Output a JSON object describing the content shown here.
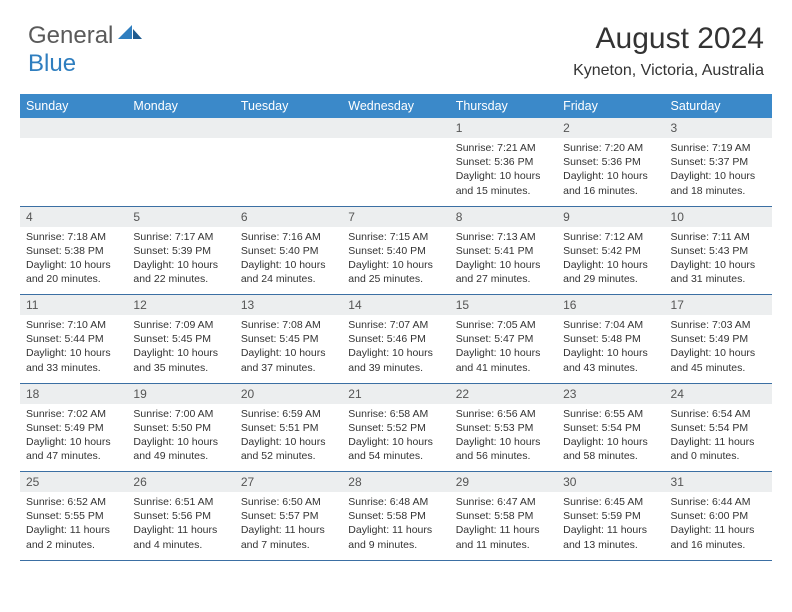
{
  "logo": {
    "word1": "General",
    "word2": "Blue"
  },
  "title": "August 2024",
  "location": "Kyneton, Victoria, Australia",
  "colors": {
    "header_bg": "#3b89c9",
    "header_text": "#ffffff",
    "daynum_bg": "#eceeef",
    "border": "#3b6fa3",
    "logo_gray": "#5a5a5a",
    "logo_blue": "#2f7ebf"
  },
  "day_labels": [
    "Sunday",
    "Monday",
    "Tuesday",
    "Wednesday",
    "Thursday",
    "Friday",
    "Saturday"
  ],
  "weeks": [
    {
      "nums": [
        "",
        "",
        "",
        "",
        "1",
        "2",
        "3"
      ],
      "cells": [
        null,
        null,
        null,
        null,
        {
          "sunrise": "Sunrise: 7:21 AM",
          "sunset": "Sunset: 5:36 PM",
          "daylight1": "Daylight: 10 hours",
          "daylight2": "and 15 minutes."
        },
        {
          "sunrise": "Sunrise: 7:20 AM",
          "sunset": "Sunset: 5:36 PM",
          "daylight1": "Daylight: 10 hours",
          "daylight2": "and 16 minutes."
        },
        {
          "sunrise": "Sunrise: 7:19 AM",
          "sunset": "Sunset: 5:37 PM",
          "daylight1": "Daylight: 10 hours",
          "daylight2": "and 18 minutes."
        }
      ]
    },
    {
      "nums": [
        "4",
        "5",
        "6",
        "7",
        "8",
        "9",
        "10"
      ],
      "cells": [
        {
          "sunrise": "Sunrise: 7:18 AM",
          "sunset": "Sunset: 5:38 PM",
          "daylight1": "Daylight: 10 hours",
          "daylight2": "and 20 minutes."
        },
        {
          "sunrise": "Sunrise: 7:17 AM",
          "sunset": "Sunset: 5:39 PM",
          "daylight1": "Daylight: 10 hours",
          "daylight2": "and 22 minutes."
        },
        {
          "sunrise": "Sunrise: 7:16 AM",
          "sunset": "Sunset: 5:40 PM",
          "daylight1": "Daylight: 10 hours",
          "daylight2": "and 24 minutes."
        },
        {
          "sunrise": "Sunrise: 7:15 AM",
          "sunset": "Sunset: 5:40 PM",
          "daylight1": "Daylight: 10 hours",
          "daylight2": "and 25 minutes."
        },
        {
          "sunrise": "Sunrise: 7:13 AM",
          "sunset": "Sunset: 5:41 PM",
          "daylight1": "Daylight: 10 hours",
          "daylight2": "and 27 minutes."
        },
        {
          "sunrise": "Sunrise: 7:12 AM",
          "sunset": "Sunset: 5:42 PM",
          "daylight1": "Daylight: 10 hours",
          "daylight2": "and 29 minutes."
        },
        {
          "sunrise": "Sunrise: 7:11 AM",
          "sunset": "Sunset: 5:43 PM",
          "daylight1": "Daylight: 10 hours",
          "daylight2": "and 31 minutes."
        }
      ]
    },
    {
      "nums": [
        "11",
        "12",
        "13",
        "14",
        "15",
        "16",
        "17"
      ],
      "cells": [
        {
          "sunrise": "Sunrise: 7:10 AM",
          "sunset": "Sunset: 5:44 PM",
          "daylight1": "Daylight: 10 hours",
          "daylight2": "and 33 minutes."
        },
        {
          "sunrise": "Sunrise: 7:09 AM",
          "sunset": "Sunset: 5:45 PM",
          "daylight1": "Daylight: 10 hours",
          "daylight2": "and 35 minutes."
        },
        {
          "sunrise": "Sunrise: 7:08 AM",
          "sunset": "Sunset: 5:45 PM",
          "daylight1": "Daylight: 10 hours",
          "daylight2": "and 37 minutes."
        },
        {
          "sunrise": "Sunrise: 7:07 AM",
          "sunset": "Sunset: 5:46 PM",
          "daylight1": "Daylight: 10 hours",
          "daylight2": "and 39 minutes."
        },
        {
          "sunrise": "Sunrise: 7:05 AM",
          "sunset": "Sunset: 5:47 PM",
          "daylight1": "Daylight: 10 hours",
          "daylight2": "and 41 minutes."
        },
        {
          "sunrise": "Sunrise: 7:04 AM",
          "sunset": "Sunset: 5:48 PM",
          "daylight1": "Daylight: 10 hours",
          "daylight2": "and 43 minutes."
        },
        {
          "sunrise": "Sunrise: 7:03 AM",
          "sunset": "Sunset: 5:49 PM",
          "daylight1": "Daylight: 10 hours",
          "daylight2": "and 45 minutes."
        }
      ]
    },
    {
      "nums": [
        "18",
        "19",
        "20",
        "21",
        "22",
        "23",
        "24"
      ],
      "cells": [
        {
          "sunrise": "Sunrise: 7:02 AM",
          "sunset": "Sunset: 5:49 PM",
          "daylight1": "Daylight: 10 hours",
          "daylight2": "and 47 minutes."
        },
        {
          "sunrise": "Sunrise: 7:00 AM",
          "sunset": "Sunset: 5:50 PM",
          "daylight1": "Daylight: 10 hours",
          "daylight2": "and 49 minutes."
        },
        {
          "sunrise": "Sunrise: 6:59 AM",
          "sunset": "Sunset: 5:51 PM",
          "daylight1": "Daylight: 10 hours",
          "daylight2": "and 52 minutes."
        },
        {
          "sunrise": "Sunrise: 6:58 AM",
          "sunset": "Sunset: 5:52 PM",
          "daylight1": "Daylight: 10 hours",
          "daylight2": "and 54 minutes."
        },
        {
          "sunrise": "Sunrise: 6:56 AM",
          "sunset": "Sunset: 5:53 PM",
          "daylight1": "Daylight: 10 hours",
          "daylight2": "and 56 minutes."
        },
        {
          "sunrise": "Sunrise: 6:55 AM",
          "sunset": "Sunset: 5:54 PM",
          "daylight1": "Daylight: 10 hours",
          "daylight2": "and 58 minutes."
        },
        {
          "sunrise": "Sunrise: 6:54 AM",
          "sunset": "Sunset: 5:54 PM",
          "daylight1": "Daylight: 11 hours",
          "daylight2": "and 0 minutes."
        }
      ]
    },
    {
      "nums": [
        "25",
        "26",
        "27",
        "28",
        "29",
        "30",
        "31"
      ],
      "cells": [
        {
          "sunrise": "Sunrise: 6:52 AM",
          "sunset": "Sunset: 5:55 PM",
          "daylight1": "Daylight: 11 hours",
          "daylight2": "and 2 minutes."
        },
        {
          "sunrise": "Sunrise: 6:51 AM",
          "sunset": "Sunset: 5:56 PM",
          "daylight1": "Daylight: 11 hours",
          "daylight2": "and 4 minutes."
        },
        {
          "sunrise": "Sunrise: 6:50 AM",
          "sunset": "Sunset: 5:57 PM",
          "daylight1": "Daylight: 11 hours",
          "daylight2": "and 7 minutes."
        },
        {
          "sunrise": "Sunrise: 6:48 AM",
          "sunset": "Sunset: 5:58 PM",
          "daylight1": "Daylight: 11 hours",
          "daylight2": "and 9 minutes."
        },
        {
          "sunrise": "Sunrise: 6:47 AM",
          "sunset": "Sunset: 5:58 PM",
          "daylight1": "Daylight: 11 hours",
          "daylight2": "and 11 minutes."
        },
        {
          "sunrise": "Sunrise: 6:45 AM",
          "sunset": "Sunset: 5:59 PM",
          "daylight1": "Daylight: 11 hours",
          "daylight2": "and 13 minutes."
        },
        {
          "sunrise": "Sunrise: 6:44 AM",
          "sunset": "Sunset: 6:00 PM",
          "daylight1": "Daylight: 11 hours",
          "daylight2": "and 16 minutes."
        }
      ]
    }
  ]
}
